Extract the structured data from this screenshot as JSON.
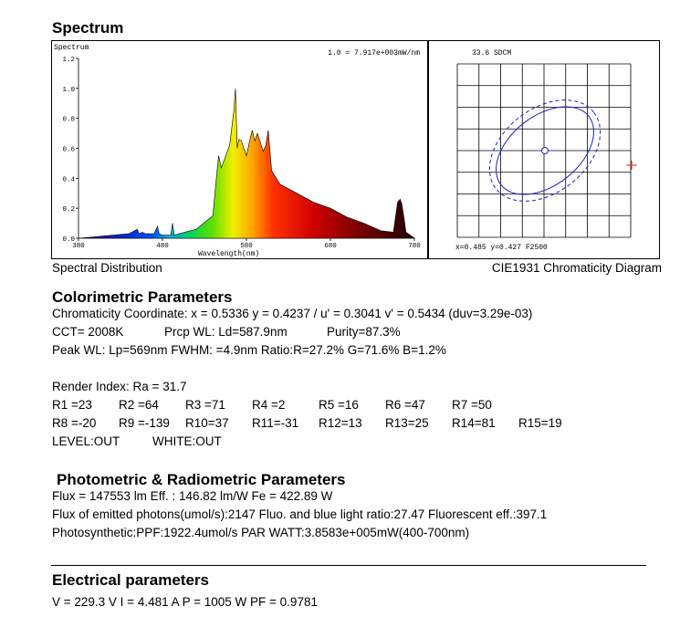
{
  "spectrum": {
    "heading": "Spectrum",
    "plot_label": "Spectrum",
    "scale_note": "1.0 = 7.917e+003mW/nm",
    "caption": "Spectral Distribution"
  },
  "chart_data": {
    "type": "area",
    "title": "Spectrum",
    "xlabel": "Wavelength(nm)",
    "ylabel": "",
    "xlim": [
      380,
      780
    ],
    "ylim": [
      0,
      1.2
    ],
    "x_ticks": [
      "380",
      "480",
      "580",
      "680",
      "780"
    ],
    "y_ticks": [
      "0.0",
      "0.2",
      "0.4",
      "0.6",
      "0.8",
      "1.0",
      "1.2"
    ],
    "x": [
      380,
      400,
      420,
      440,
      450,
      452,
      456,
      460,
      470,
      474,
      476,
      480,
      490,
      492,
      494,
      500,
      520,
      540,
      545,
      547,
      550,
      560,
      565,
      567,
      569,
      571,
      574,
      580,
      585,
      587,
      590,
      593,
      600,
      603,
      606,
      610,
      620,
      640,
      660,
      680,
      700,
      720,
      740,
      755,
      760,
      763,
      765,
      768,
      770,
      780
    ],
    "values": [
      0.0,
      0.01,
      0.02,
      0.03,
      0.06,
      0.03,
      0.04,
      0.03,
      0.03,
      0.08,
      0.03,
      0.02,
      0.02,
      0.1,
      0.02,
      0.03,
      0.06,
      0.15,
      0.45,
      0.55,
      0.47,
      0.62,
      0.85,
      1.0,
      0.6,
      0.66,
      0.65,
      0.55,
      0.68,
      0.72,
      0.65,
      0.7,
      0.58,
      0.62,
      0.72,
      0.45,
      0.36,
      0.3,
      0.24,
      0.2,
      0.14,
      0.1,
      0.05,
      0.04,
      0.24,
      0.26,
      0.23,
      0.12,
      0.04,
      0.0
    ]
  },
  "cie": {
    "title": "33.6 SDCM",
    "readout": "x=0.485  y=0.427  F2500",
    "caption": "CIE1931 Chromaticity Diagram"
  },
  "colorimetric": {
    "heading": "Colorimetric Parameters",
    "line1": "Chromaticity Coordinate: x = 0.5336 y = 0.4237 / u' = 0.3041 v' = 0.5434 (duv=3.29e-03)",
    "cct": "CCT=  2008K",
    "prcp": "Prcp WL:  Ld=587.9nm",
    "purity": "Purity=87.3%",
    "peak": "Peak WL:  Lp=569nm  FWHM:   =4.9nm  Ratio:R=27.2% G=71.6% B=1.2%",
    "render": "Render Index: Ra = 31.7",
    "r_row1": [
      "R1 =23",
      "R2 =64",
      "R3 =71",
      "R4 =2",
      "R5 =16",
      "R6 =47",
      "R7 =50"
    ],
    "r_row2": [
      "R8 =-20",
      "R9 =-139",
      "R10=37",
      "R11=-31",
      "R12=13",
      "R13=25",
      "R14=81",
      "R15=19"
    ],
    "level": "LEVEL:OUT",
    "white": "WHITE:OUT"
  },
  "photometric": {
    "heading": "Photometric & Radiometric Parameters",
    "line1": "Flux = 147553 lm  Eff. : 146.82 lm/W  Fe  = 422.89 W",
    "line2": "Flux of emitted photons(umol/s):2147    Fluo. and blue light ratio:27.47   Fluorescent eff.:397.1",
    "line3": "Photosynthetic:PPF:1922.4umol/s PAR WATT:3.8583e+005mW(400-700nm)"
  },
  "electrical": {
    "heading": "Electrical parameters",
    "line1": "V = 229.3 V     I = 4.481 A    P = 1005 W PF = 0.9781"
  }
}
